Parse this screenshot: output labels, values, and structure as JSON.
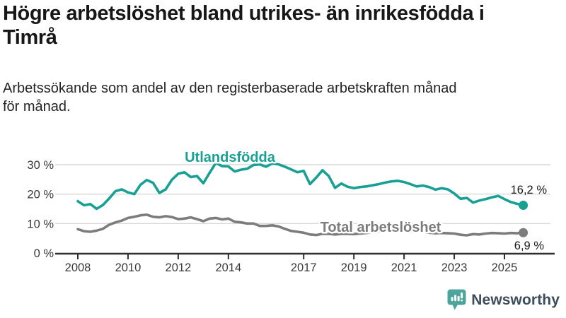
{
  "header": {
    "title": "Högre arbetslöshet bland utrikes- än inrikesfödda i\nTimrå",
    "subtitle": "Arbetssökande som andel av den registerbaserade arbetskraften månad\nför månad."
  },
  "footer": {
    "brand": "Newsworthy"
  },
  "colors": {
    "series_foreign_born": "#18a094",
    "series_total": "#7c7c7f",
    "gridline": "#d9d9d9",
    "axis": "#2f2f2f",
    "axis_text": "#3a3a3a",
    "value_text": "#1a1a1a",
    "logo_mark": "#4ba59c",
    "logo_text": "#3d4d5d"
  },
  "chart_data": {
    "type": "line",
    "title": "Högre arbetslöshet bland utrikes- än inrikesfödda i Timrå",
    "subtitle": "Arbetssökande som andel av den registerbaserade arbetskraften månad för månad.",
    "xlabel": "",
    "ylabel": "",
    "grid": "horizontal",
    "legend_position": "inline-labels",
    "x_tick_years": [
      2008,
      2010,
      2012,
      2014,
      2017,
      2019,
      2021,
      2023,
      2025
    ],
    "x_tick_labels": [
      "2008",
      "2010",
      "2012",
      "2014",
      "2017",
      "2019",
      "2021",
      "2023",
      "2025"
    ],
    "y_ticks": [
      0,
      10,
      20,
      30
    ],
    "y_tick_labels": [
      "0 %",
      "10 %",
      "20 %",
      "30 %"
    ],
    "xlim": [
      2007.2,
      2026.8
    ],
    "ylim": [
      0,
      37
    ],
    "series": [
      {
        "name": "Utlandsfödda",
        "color": "#18a094",
        "end_label": "16,2 %",
        "end_value": 16.2,
        "points": [
          [
            2008.0,
            17.6
          ],
          [
            2008.25,
            16.2
          ],
          [
            2008.5,
            16.6
          ],
          [
            2008.75,
            15.0
          ],
          [
            2009.0,
            16.3
          ],
          [
            2009.25,
            18.5
          ],
          [
            2009.5,
            21.0
          ],
          [
            2009.75,
            21.6
          ],
          [
            2010.0,
            20.6
          ],
          [
            2010.25,
            20.0
          ],
          [
            2010.5,
            23.2
          ],
          [
            2010.75,
            24.8
          ],
          [
            2011.0,
            23.8
          ],
          [
            2011.25,
            20.4
          ],
          [
            2011.5,
            21.6
          ],
          [
            2011.75,
            24.9
          ],
          [
            2012.0,
            26.9
          ],
          [
            2012.25,
            27.4
          ],
          [
            2012.5,
            25.8
          ],
          [
            2012.75,
            26.1
          ],
          [
            2013.0,
            23.7
          ],
          [
            2013.25,
            27.2
          ],
          [
            2013.5,
            30.6
          ],
          [
            2013.75,
            29.5
          ],
          [
            2014.0,
            29.4
          ],
          [
            2014.25,
            27.7
          ],
          [
            2014.5,
            28.3
          ],
          [
            2014.75,
            28.6
          ],
          [
            2015.0,
            29.9
          ],
          [
            2015.25,
            30.1
          ],
          [
            2015.5,
            29.3
          ],
          [
            2015.75,
            30.4
          ],
          [
            2016.0,
            30.1
          ],
          [
            2016.25,
            29.3
          ],
          [
            2016.5,
            28.4
          ],
          [
            2016.75,
            27.4
          ],
          [
            2017.0,
            27.9
          ],
          [
            2017.25,
            23.4
          ],
          [
            2017.5,
            25.6
          ],
          [
            2017.75,
            28.1
          ],
          [
            2018.0,
            26.1
          ],
          [
            2018.25,
            22.1
          ],
          [
            2018.5,
            23.6
          ],
          [
            2018.75,
            22.5
          ],
          [
            2019.0,
            22.0
          ],
          [
            2019.25,
            22.4
          ],
          [
            2019.5,
            22.6
          ],
          [
            2019.75,
            23.0
          ],
          [
            2020.0,
            23.4
          ],
          [
            2020.25,
            23.9
          ],
          [
            2020.5,
            24.3
          ],
          [
            2020.75,
            24.5
          ],
          [
            2021.0,
            24.1
          ],
          [
            2021.25,
            23.4
          ],
          [
            2021.5,
            22.6
          ],
          [
            2021.75,
            22.9
          ],
          [
            2022.0,
            22.4
          ],
          [
            2022.25,
            21.5
          ],
          [
            2022.5,
            22.0
          ],
          [
            2022.75,
            21.6
          ],
          [
            2023.0,
            20.2
          ],
          [
            2023.25,
            18.4
          ],
          [
            2023.5,
            18.7
          ],
          [
            2023.75,
            17.1
          ],
          [
            2024.0,
            17.8
          ],
          [
            2024.25,
            18.3
          ],
          [
            2024.5,
            18.9
          ],
          [
            2024.75,
            19.4
          ],
          [
            2025.0,
            18.3
          ],
          [
            2025.25,
            17.3
          ],
          [
            2025.5,
            16.7
          ],
          [
            2025.75,
            16.2
          ]
        ]
      },
      {
        "name": "Total arbetslöshet",
        "color": "#7c7c7f",
        "end_label": "6,9 %",
        "end_value": 6.9,
        "points": [
          [
            2008.0,
            8.1
          ],
          [
            2008.25,
            7.4
          ],
          [
            2008.5,
            7.2
          ],
          [
            2008.75,
            7.6
          ],
          [
            2009.0,
            8.2
          ],
          [
            2009.25,
            9.6
          ],
          [
            2009.5,
            10.4
          ],
          [
            2009.75,
            11.0
          ],
          [
            2010.0,
            11.9
          ],
          [
            2010.25,
            12.3
          ],
          [
            2010.5,
            12.8
          ],
          [
            2010.75,
            13.0
          ],
          [
            2011.0,
            12.3
          ],
          [
            2011.25,
            12.1
          ],
          [
            2011.5,
            12.5
          ],
          [
            2011.75,
            12.2
          ],
          [
            2012.0,
            11.5
          ],
          [
            2012.25,
            11.7
          ],
          [
            2012.5,
            12.1
          ],
          [
            2012.75,
            11.5
          ],
          [
            2013.0,
            10.8
          ],
          [
            2013.25,
            11.7
          ],
          [
            2013.5,
            11.9
          ],
          [
            2013.75,
            11.4
          ],
          [
            2014.0,
            11.7
          ],
          [
            2014.25,
            10.6
          ],
          [
            2014.5,
            10.4
          ],
          [
            2014.75,
            10.0
          ],
          [
            2015.0,
            10.0
          ],
          [
            2015.25,
            9.2
          ],
          [
            2015.5,
            9.2
          ],
          [
            2015.75,
            9.4
          ],
          [
            2016.0,
            9.0
          ],
          [
            2016.25,
            8.2
          ],
          [
            2016.5,
            7.5
          ],
          [
            2016.75,
            7.2
          ],
          [
            2017.0,
            6.9
          ],
          [
            2017.25,
            6.3
          ],
          [
            2017.5,
            6.1
          ],
          [
            2017.75,
            6.5
          ],
          [
            2018.0,
            6.5
          ],
          [
            2018.25,
            6.3
          ],
          [
            2018.5,
            6.5
          ],
          [
            2018.75,
            6.5
          ],
          [
            2019.0,
            6.4
          ],
          [
            2019.25,
            6.6
          ],
          [
            2019.5,
            6.8
          ],
          [
            2019.75,
            7.1
          ],
          [
            2020.0,
            7.4
          ],
          [
            2020.25,
            7.9
          ],
          [
            2020.5,
            8.0
          ],
          [
            2020.75,
            7.8
          ],
          [
            2021.0,
            7.6
          ],
          [
            2021.25,
            7.5
          ],
          [
            2021.5,
            7.3
          ],
          [
            2021.75,
            7.1
          ],
          [
            2022.0,
            6.9
          ],
          [
            2022.25,
            6.7
          ],
          [
            2022.5,
            6.8
          ],
          [
            2022.75,
            6.7
          ],
          [
            2023.0,
            6.6
          ],
          [
            2023.25,
            6.2
          ],
          [
            2023.5,
            6.0
          ],
          [
            2023.75,
            6.4
          ],
          [
            2024.0,
            6.3
          ],
          [
            2024.25,
            6.6
          ],
          [
            2024.5,
            6.8
          ],
          [
            2024.75,
            6.7
          ],
          [
            2025.0,
            6.6
          ],
          [
            2025.25,
            6.8
          ],
          [
            2025.5,
            6.7
          ],
          [
            2025.75,
            6.9
          ]
        ]
      }
    ]
  }
}
